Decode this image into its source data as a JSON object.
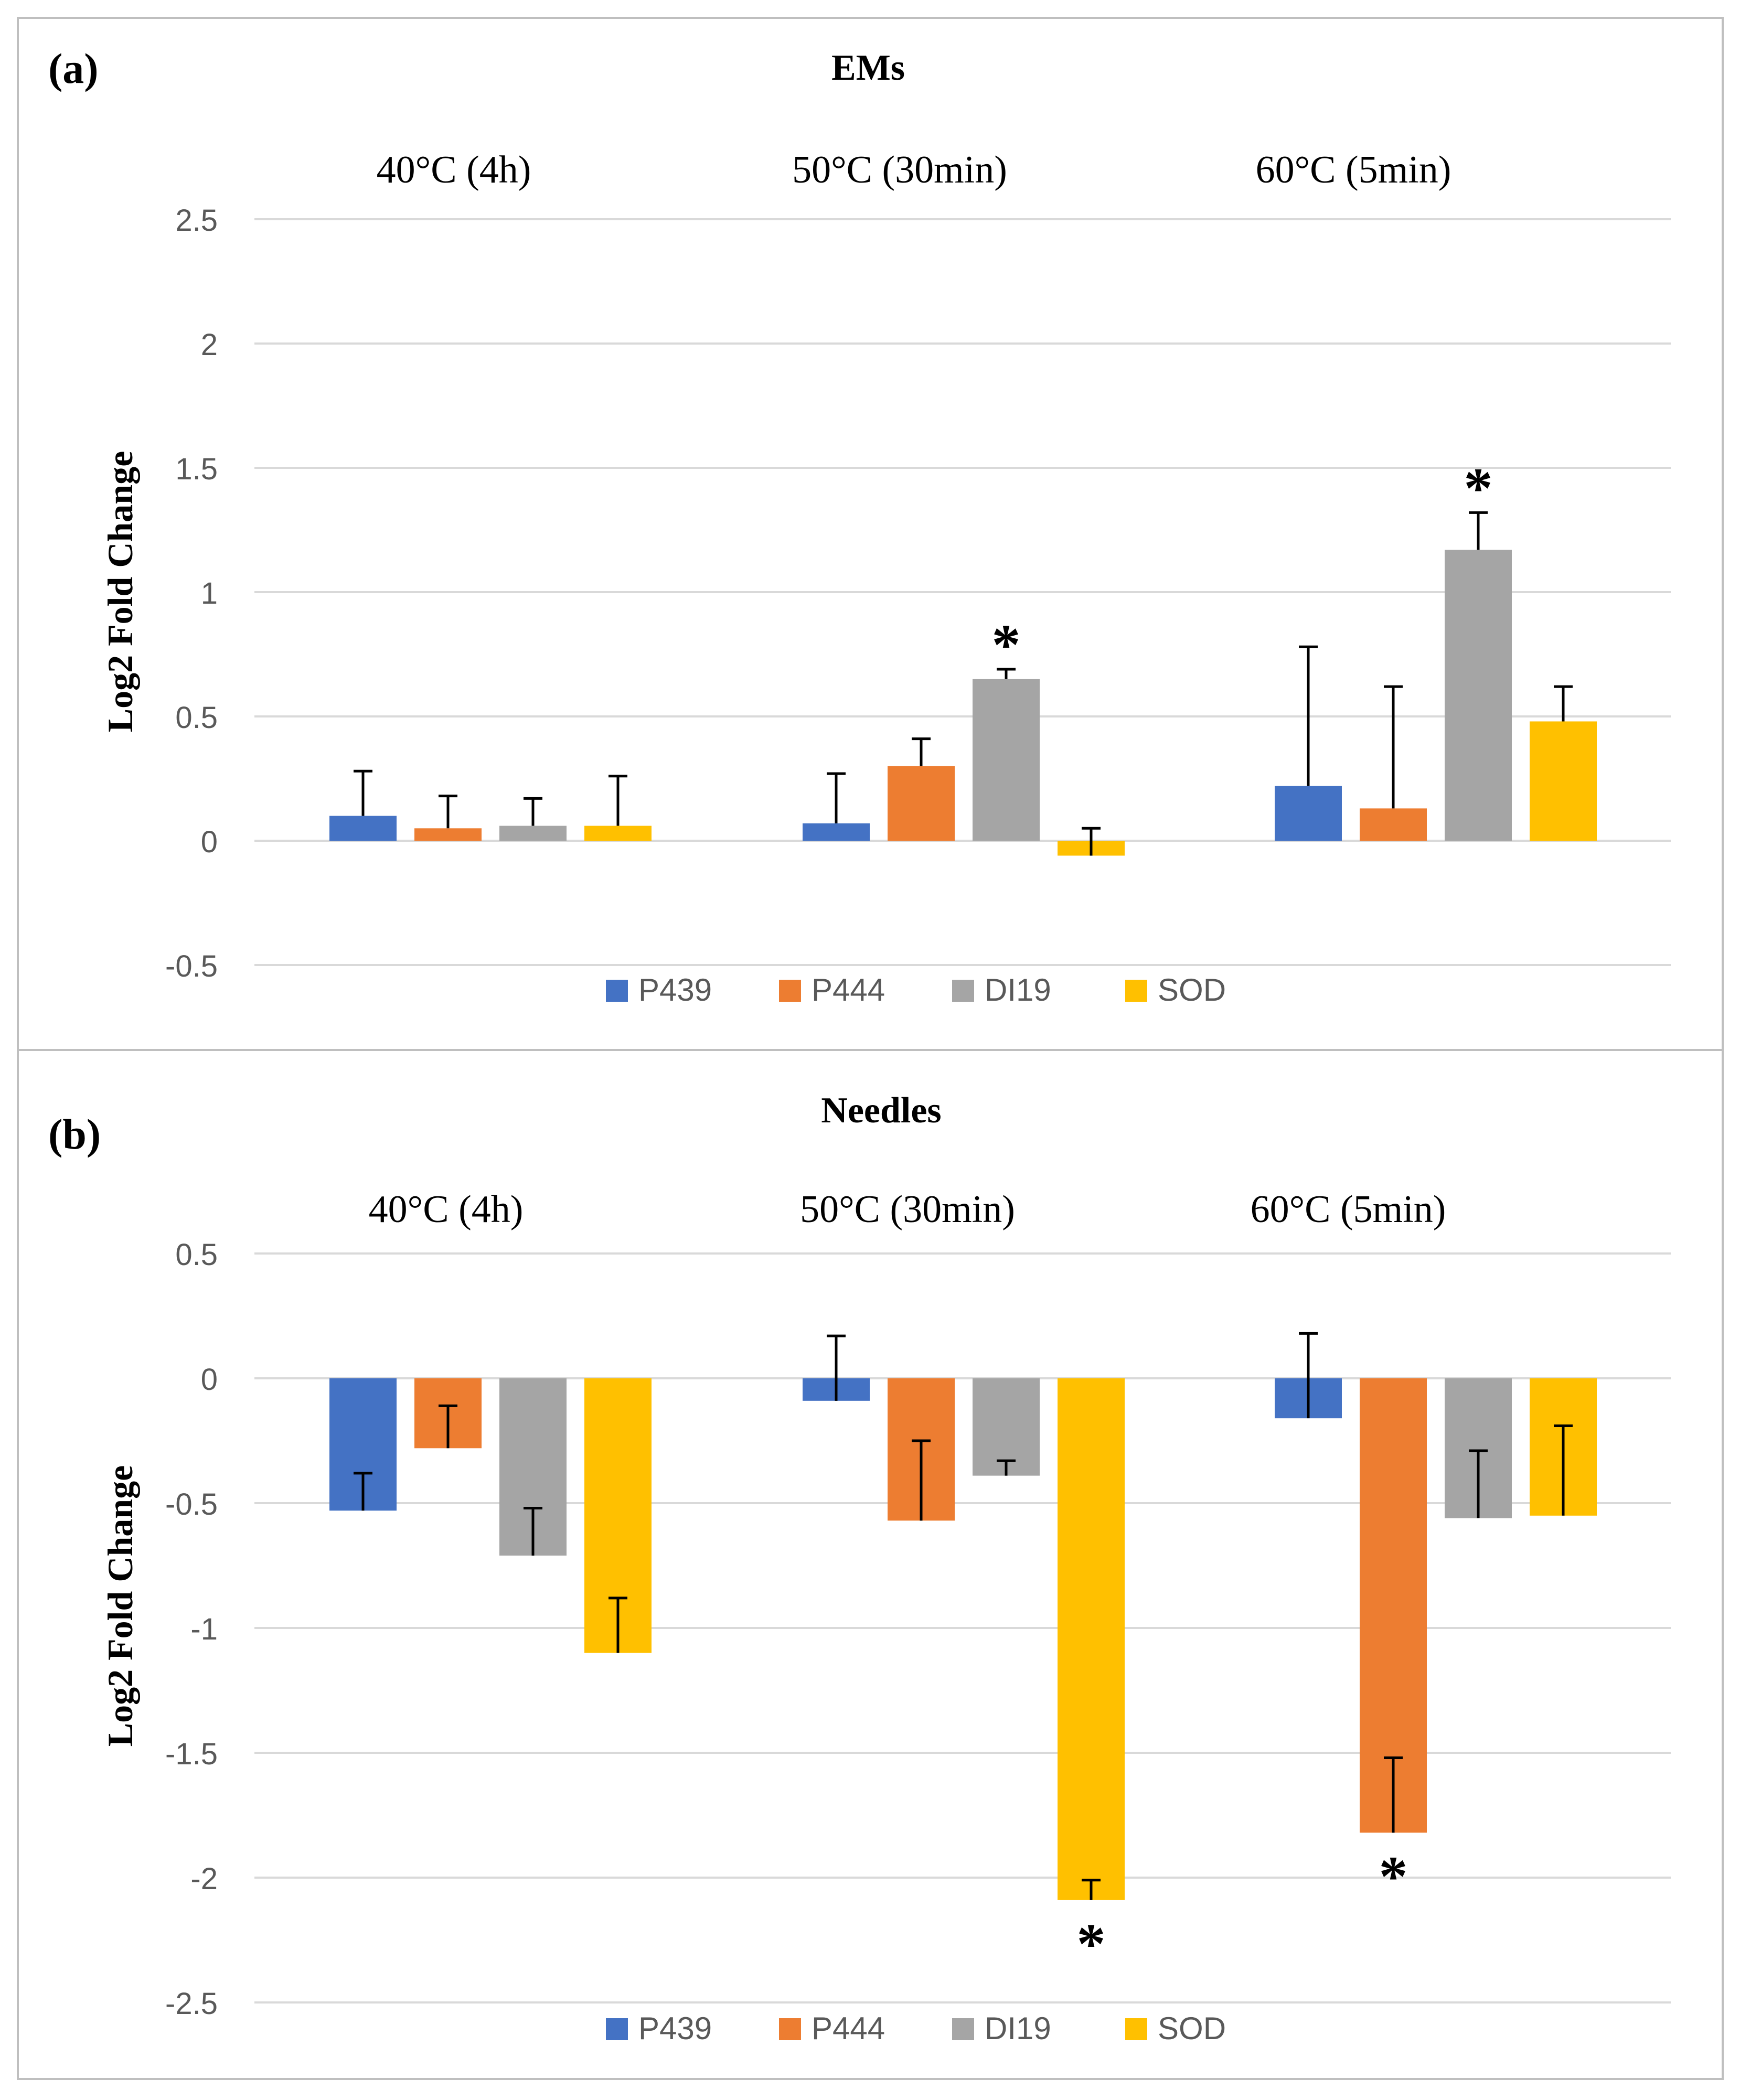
{
  "colors": {
    "P439": "#4472C4",
    "P444": "#ED7D31",
    "DI19": "#A5A5A5",
    "SOD": "#FFC000",
    "grid": "#D9D9D9",
    "frame": "#BFBFBF",
    "text": "#000000",
    "tick": "#595959"
  },
  "chart_data": [
    {
      "panel_label": "(a)",
      "title": "EMs",
      "type": "bar",
      "ylabel": "Log2 Fold Change",
      "ylim": [
        -0.5,
        2.5
      ],
      "yticks": [
        2.5,
        2,
        1.5,
        1,
        0.5,
        0,
        -0.5
      ],
      "ytick_labels": [
        "2.5",
        "2",
        "1.5",
        "1",
        "0.5",
        "0",
        "-0.5"
      ],
      "categories": [
        "40°C (4h)",
        "50°C (30min)",
        "60°C (5min)"
      ],
      "series": [
        {
          "name": "P439",
          "values": [
            0.1,
            0.07,
            0.22
          ],
          "errors": [
            0.18,
            0.2,
            0.56
          ]
        },
        {
          "name": "P444",
          "values": [
            0.05,
            0.3,
            0.13
          ],
          "errors": [
            0.13,
            0.11,
            0.49
          ]
        },
        {
          "name": "DI19",
          "values": [
            0.06,
            0.65,
            1.17
          ],
          "errors": [
            0.11,
            0.04,
            0.15
          ]
        },
        {
          "name": "SOD",
          "values": [
            0.06,
            -0.06,
            0.48
          ],
          "errors": [
            0.2,
            0.11,
            0.14
          ]
        }
      ],
      "significance": [
        {
          "series": "DI19",
          "category": "50°C (30min)",
          "mark": "*"
        },
        {
          "series": "DI19",
          "category": "60°C (5min)",
          "mark": "*"
        }
      ],
      "legend": [
        "P439",
        "P444",
        "DI19",
        "SOD"
      ],
      "legend_position": "bottom"
    },
    {
      "panel_label": "(b)",
      "title": "Needles",
      "type": "bar",
      "ylabel": "Log2 Fold Change",
      "ylim": [
        -2.5,
        0.5
      ],
      "yticks": [
        0.5,
        0,
        -0.5,
        -1,
        -1.5,
        -2,
        -2.5
      ],
      "ytick_labels": [
        "0.5",
        "0",
        "-0.5",
        "-1",
        "-1.5",
        "-2",
        "-2.5"
      ],
      "categories": [
        "40°C (4h)",
        "50°C (30min)",
        "60°C (5min)"
      ],
      "series": [
        {
          "name": "P439",
          "values": [
            -0.53,
            -0.09,
            -0.16
          ],
          "errors": [
            0.15,
            0.26,
            0.34
          ]
        },
        {
          "name": "P444",
          "values": [
            -0.28,
            -0.57,
            -1.82
          ],
          "errors": [
            0.17,
            0.32,
            0.3
          ]
        },
        {
          "name": "DI19",
          "values": [
            -0.71,
            -0.39,
            -0.56
          ],
          "errors": [
            0.19,
            0.06,
            0.27
          ]
        },
        {
          "name": "SOD",
          "values": [
            -1.1,
            -2.09,
            -0.55
          ],
          "errors": [
            0.22,
            0.08,
            0.36
          ]
        }
      ],
      "significance": [
        {
          "series": "SOD",
          "category": "50°C (30min)",
          "mark": "*"
        },
        {
          "series": "P444",
          "category": "60°C (5min)",
          "mark": "*"
        }
      ],
      "legend": [
        "P439",
        "P444",
        "DI19",
        "SOD"
      ],
      "legend_position": "bottom"
    }
  ]
}
